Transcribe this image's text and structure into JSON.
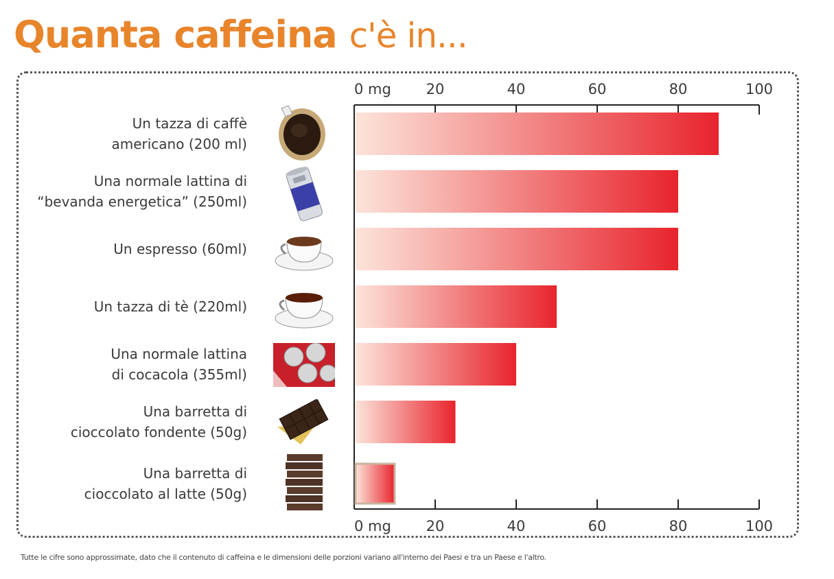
{
  "title": {
    "strong": "Quanta caffeina",
    "light": "c'è in..."
  },
  "footnote": "Tutte le cifre sono approssimate, dato che il contenuto di caffeina e le dimensioni delle porzioni variano all'interno dei Paesi e tra un Paese e l'altro.",
  "colors": {
    "title": "#e8852b",
    "bar_start": "#fce4da",
    "bar_end": "#e8242d",
    "axis": "#222222",
    "milk_bar_border": "#c9b49f"
  },
  "chart_data": {
    "type": "bar",
    "orientation": "horizontal",
    "xlim": [
      0,
      100
    ],
    "ticks": [
      "0 mg",
      "20",
      "40",
      "60",
      "80",
      "100"
    ],
    "tick_values": [
      0,
      20,
      40,
      60,
      80,
      100
    ],
    "categories": [
      [
        "Un tazza di caffè",
        "americano (200 ml)"
      ],
      [
        "Una normale lattina di",
        "“bevanda energetica” (250ml)"
      ],
      [
        "Un espresso (60ml)"
      ],
      [
        "Un tazza di tè (220ml)"
      ],
      [
        "Una normale lattina",
        "di cocacola (355ml)"
      ],
      [
        "Una barretta di",
        "cioccolato fondente (50g)"
      ],
      [
        "Una barretta di",
        "cioccolato al latte (50g)"
      ]
    ],
    "values": [
      90,
      80,
      80,
      50,
      40,
      25,
      10
    ],
    "icons": [
      "coffee-filter-icon",
      "energy-drink-can-icon",
      "espresso-cup-icon",
      "tea-cup-icon",
      "cola-cans-icon",
      "dark-chocolate-icon",
      "milk-chocolate-icon"
    ]
  }
}
